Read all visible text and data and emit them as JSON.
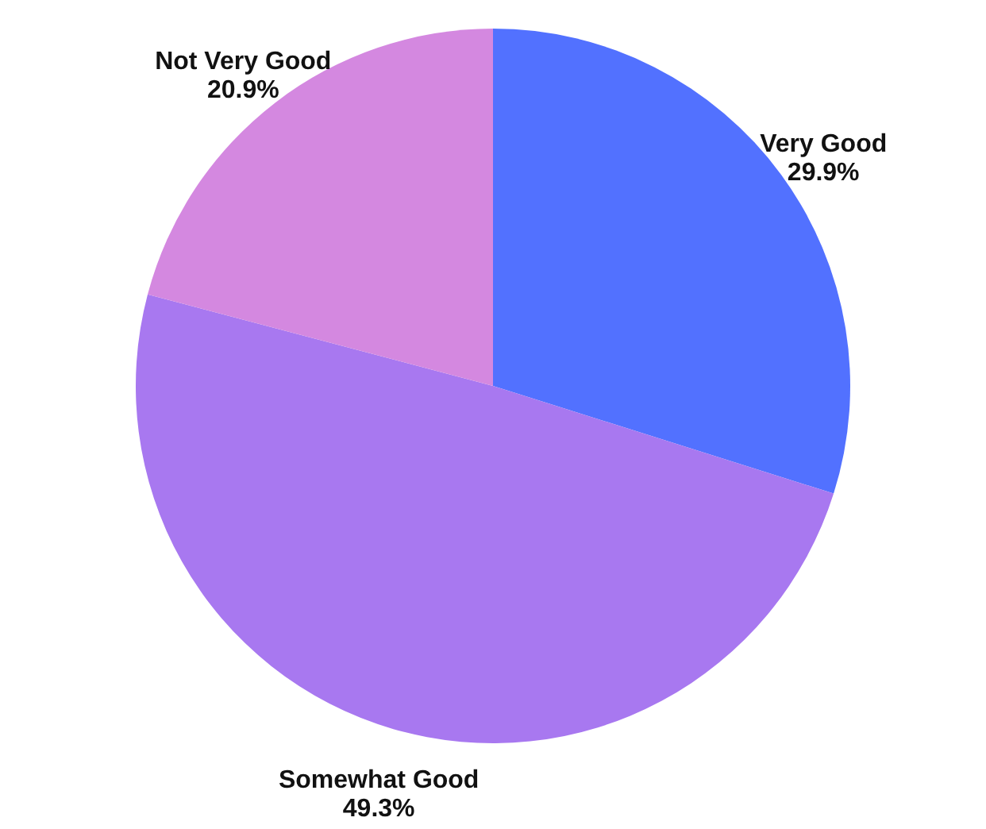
{
  "chart_data": {
    "type": "pie",
    "categories": [
      "Very Good",
      "Somewhat Good",
      "Not Very Good"
    ],
    "values": [
      29.9,
      49.3,
      20.9
    ],
    "value_labels": [
      "29.9%",
      "49.3%",
      "20.9%"
    ],
    "colors": [
      "#5271ff",
      "#a878f0",
      "#d488e0"
    ]
  }
}
